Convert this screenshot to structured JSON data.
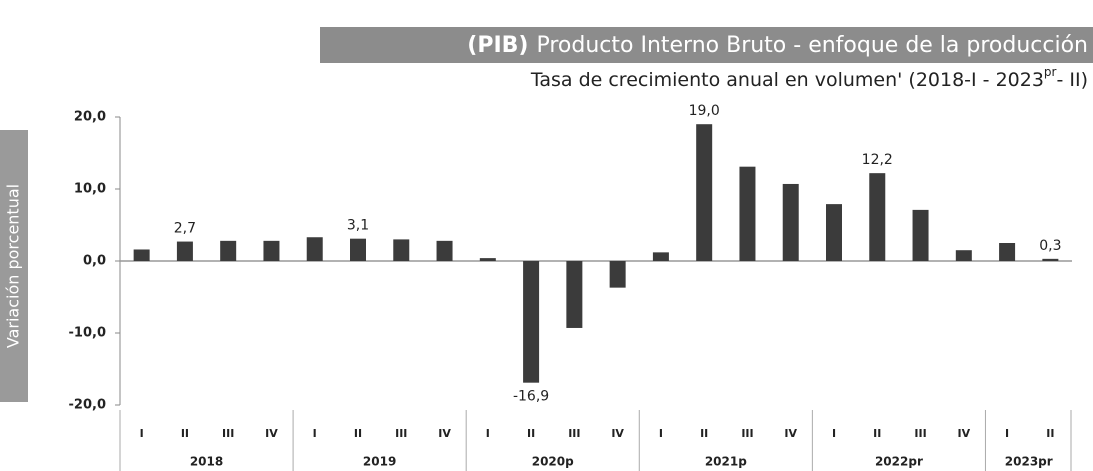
{
  "chart_data": {
    "type": "bar",
    "title_prefix": "(PIB)",
    "title": "Producto Interno Bruto  - enfoque de la producción",
    "subtitle": [
      "Tasa de crecimiento anual en volumen' (2018-I - 2023",
      "pr",
      "- II)"
    ],
    "y_label": "Variación porcentual",
    "color": "#3b3b3b",
    "ylim": [
      -20,
      20
    ],
    "yticks": [
      {
        "value": 20,
        "label": "20,0"
      },
      {
        "value": 10,
        "label": "10,0"
      },
      {
        "value": 0,
        "label": "0,0"
      },
      {
        "value": -10,
        "label": "-10,0"
      },
      {
        "value": -20,
        "label": "-20,0"
      }
    ],
    "groups": [
      {
        "label": "2018",
        "categories": [
          "I",
          "II",
          "III",
          "IV"
        ],
        "values": [
          1.6,
          2.7,
          2.8,
          2.8
        ],
        "value_labels": [
          null,
          "2,7",
          null,
          null
        ]
      },
      {
        "label": "2019",
        "categories": [
          "I",
          "II",
          "III",
          "IV"
        ],
        "values": [
          3.3,
          3.1,
          3.0,
          2.8
        ],
        "value_labels": [
          null,
          "3,1",
          null,
          null
        ]
      },
      {
        "label": "2020p",
        "categories": [
          "I",
          "II",
          "III",
          "IV"
        ],
        "values": [
          0.4,
          -16.9,
          -9.3,
          -3.7
        ],
        "value_labels": [
          null,
          "-16,9",
          null,
          null
        ]
      },
      {
        "label": "2021p",
        "categories": [
          "I",
          "II",
          "III",
          "IV"
        ],
        "values": [
          1.2,
          19.0,
          13.1,
          10.7
        ],
        "value_labels": [
          null,
          "19,0",
          null,
          null
        ]
      },
      {
        "label": "2022pr",
        "categories": [
          "I",
          "II",
          "III",
          "IV"
        ],
        "values": [
          7.9,
          12.2,
          7.1,
          1.5
        ],
        "value_labels": [
          null,
          "12,2",
          null,
          null
        ]
      },
      {
        "label": "2023pr",
        "categories": [
          "I",
          "II"
        ],
        "values": [
          2.5,
          0.3
        ],
        "value_labels": [
          null,
          "0,3"
        ]
      }
    ]
  }
}
